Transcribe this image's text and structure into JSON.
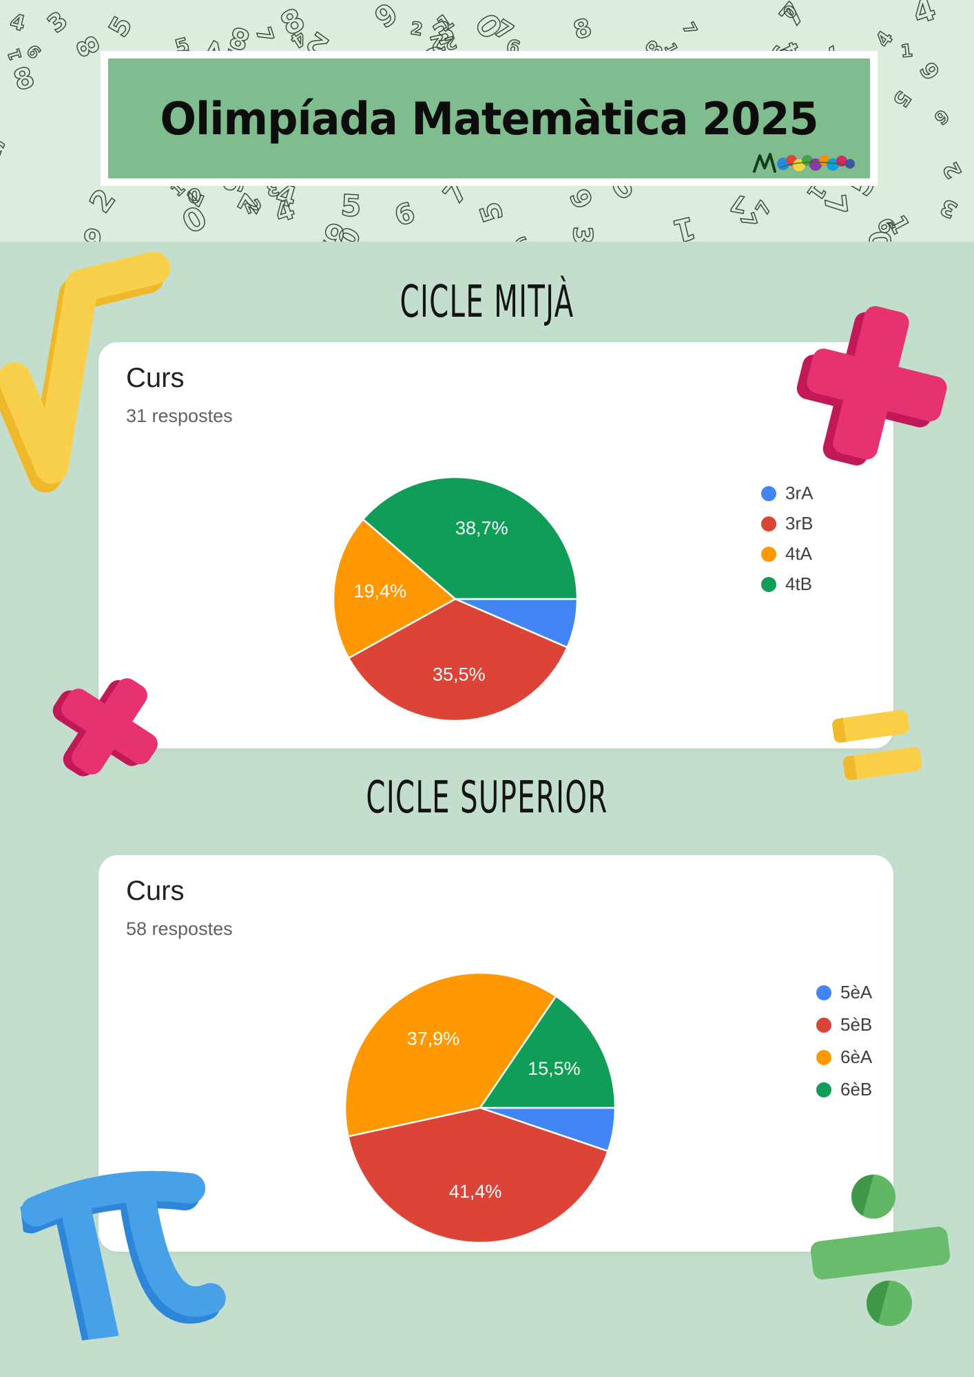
{
  "page": {
    "background_color": "#c4decd",
    "pattern_band_color": "#dbeedd",
    "pattern_digits": [
      "0",
      "1",
      "2",
      "3",
      "4",
      "5",
      "6",
      "7",
      "8",
      "9"
    ]
  },
  "header": {
    "title": "Olimpíada Matemàtica 2025",
    "banner_color": "#7fbc8e",
    "logo_icon": "school-logo"
  },
  "sections": [
    {
      "heading": "CICLE MITJÀ",
      "card_title": "Curs",
      "card_subtitle": "31 respostes"
    },
    {
      "heading": "CICLE SUPERIOR",
      "card_title": "Curs",
      "card_subtitle": "58 respostes"
    }
  ],
  "chart_data": [
    {
      "type": "pie",
      "section": "CICLE MITJÀ",
      "title": "Curs",
      "subtitle": "31 respostes",
      "categories": [
        "3rA",
        "3rB",
        "4tA",
        "4tB"
      ],
      "values_pct": [
        6.5,
        35.5,
        19.4,
        38.7
      ],
      "slice_labels": [
        "",
        "35,5%",
        "19,4%",
        "38,7%"
      ],
      "colors": [
        "#4285f4",
        "#db4437",
        "#ff9800",
        "#0f9d58"
      ],
      "legend_position": "right",
      "start_angle": "3-oclock",
      "direction": "clockwise",
      "label_color": "#ffffff"
    },
    {
      "type": "pie",
      "section": "CICLE SUPERIOR",
      "title": "Curs",
      "subtitle": "58 respostes",
      "categories": [
        "5èA",
        "5èB",
        "6èA",
        "6èB"
      ],
      "values_pct": [
        5.2,
        41.4,
        37.9,
        15.5
      ],
      "slice_labels": [
        "",
        "41,4%",
        "37,9%",
        "15,5%"
      ],
      "colors": [
        "#4285f4",
        "#db4437",
        "#ff9800",
        "#0f9d58"
      ],
      "legend_position": "right",
      "start_angle": "3-oclock",
      "direction": "clockwise",
      "label_color": "#ffffff"
    }
  ],
  "text_colors": {
    "card_title": "#202124",
    "card_subtitle": "#616161",
    "legend_label": "#3c4043",
    "heading": "#141414"
  }
}
